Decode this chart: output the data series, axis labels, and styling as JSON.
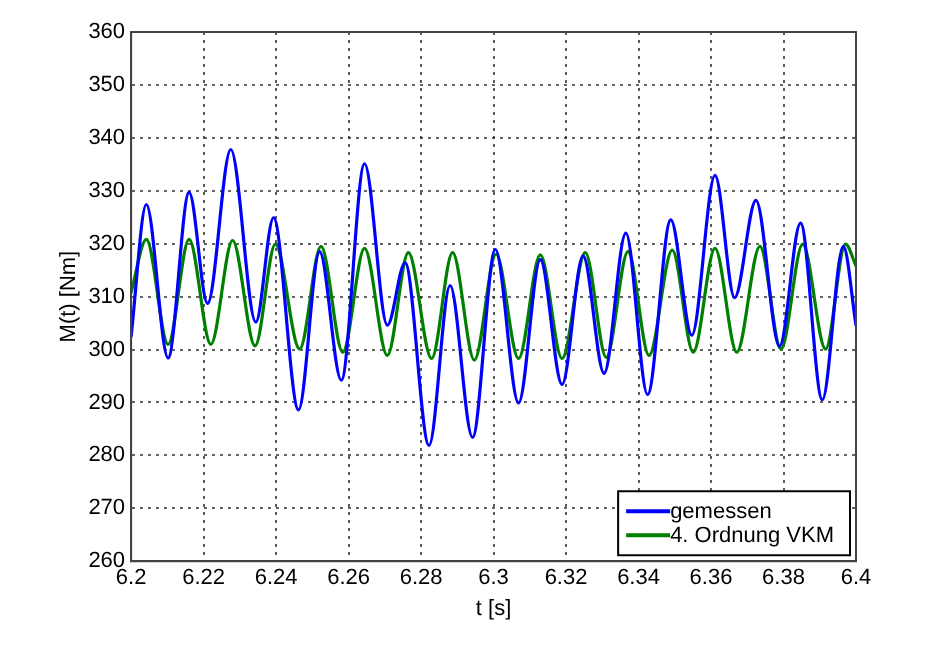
{
  "chart_data": {
    "type": "line",
    "xlabel": "t [s]",
    "ylabel": "M(t) [Nm]",
    "xlim": [
      6.2,
      6.4
    ],
    "xticks": [
      {
        "value": 6.2,
        "label": "6.2"
      },
      6.22,
      6.24,
      6.26,
      6.28,
      {
        "value": 6.3,
        "label": "6.3"
      },
      6.32,
      6.34,
      6.36,
      6.38,
      {
        "value": 6.4,
        "label": "6.4"
      }
    ],
    "ylim": [
      260,
      360
    ],
    "yticks": [
      260,
      270,
      280,
      290,
      300,
      310,
      320,
      330,
      340,
      350,
      360
    ],
    "grid": true,
    "legend": "bottom right",
    "marker": "none",
    "line_style": "solid",
    "series": [
      {
        "name": "gemessen",
        "color": "#0000ff",
        "x": [
          6.2,
          6.2042,
          6.2102,
          6.216,
          6.2211,
          6.2275,
          6.2344,
          6.2393,
          6.2462,
          6.252,
          6.258,
          6.2644,
          6.2707,
          6.2756,
          6.2822,
          6.288,
          6.2942,
          6.3005,
          6.3069,
          6.3129,
          6.3189,
          6.3247,
          6.3305,
          6.3365,
          6.3425,
          6.3489,
          6.3547,
          6.3611,
          6.3665,
          6.3724,
          6.3789,
          6.3847,
          6.3907,
          6.3965,
          6.4
        ],
        "values": [
          302.5,
          327.4,
          298.4,
          329.7,
          308.7,
          337.8,
          305.2,
          324.9,
          288.6,
          318.5,
          294.2,
          335.1,
          304.6,
          316.4,
          281.9,
          312.1,
          283.4,
          318.9,
          289.9,
          317,
          293.4,
          317.7,
          295.5,
          322,
          291.5,
          324.5,
          302.7,
          332.9,
          309.8,
          328.2,
          300.6,
          323.9,
          290.5,
          319.5,
          304.6
        ]
      },
      {
        "name": "4. Ordnung VKM",
        "color": "#008000",
        "x": [
          6.2,
          6.2042,
          6.2102,
          6.216,
          6.222,
          6.228,
          6.2342,
          6.2398,
          6.2465,
          6.2524,
          6.2584,
          6.2644,
          6.2707,
          6.2765,
          6.2829,
          6.2887,
          6.2947,
          6.3007,
          6.3069,
          6.3129,
          6.3189,
          6.3253,
          6.3311,
          6.3371,
          6.3429,
          6.3493,
          6.3551,
          6.3611,
          6.3671,
          6.3735,
          6.3793,
          6.3853,
          6.3916,
          6.3971,
          6.4
        ],
        "values": [
          310.8,
          320.8,
          301,
          320.8,
          301,
          320.6,
          300.7,
          319.9,
          300.1,
          319.5,
          299.5,
          319.1,
          298.9,
          318.3,
          298.3,
          318.3,
          298,
          318,
          298.3,
          317.9,
          298.3,
          318.3,
          298.5,
          318.5,
          298.9,
          318.8,
          299.5,
          319.1,
          299.5,
          319.5,
          300.1,
          319.9,
          300.1,
          319.9,
          315.8
        ]
      }
    ]
  }
}
